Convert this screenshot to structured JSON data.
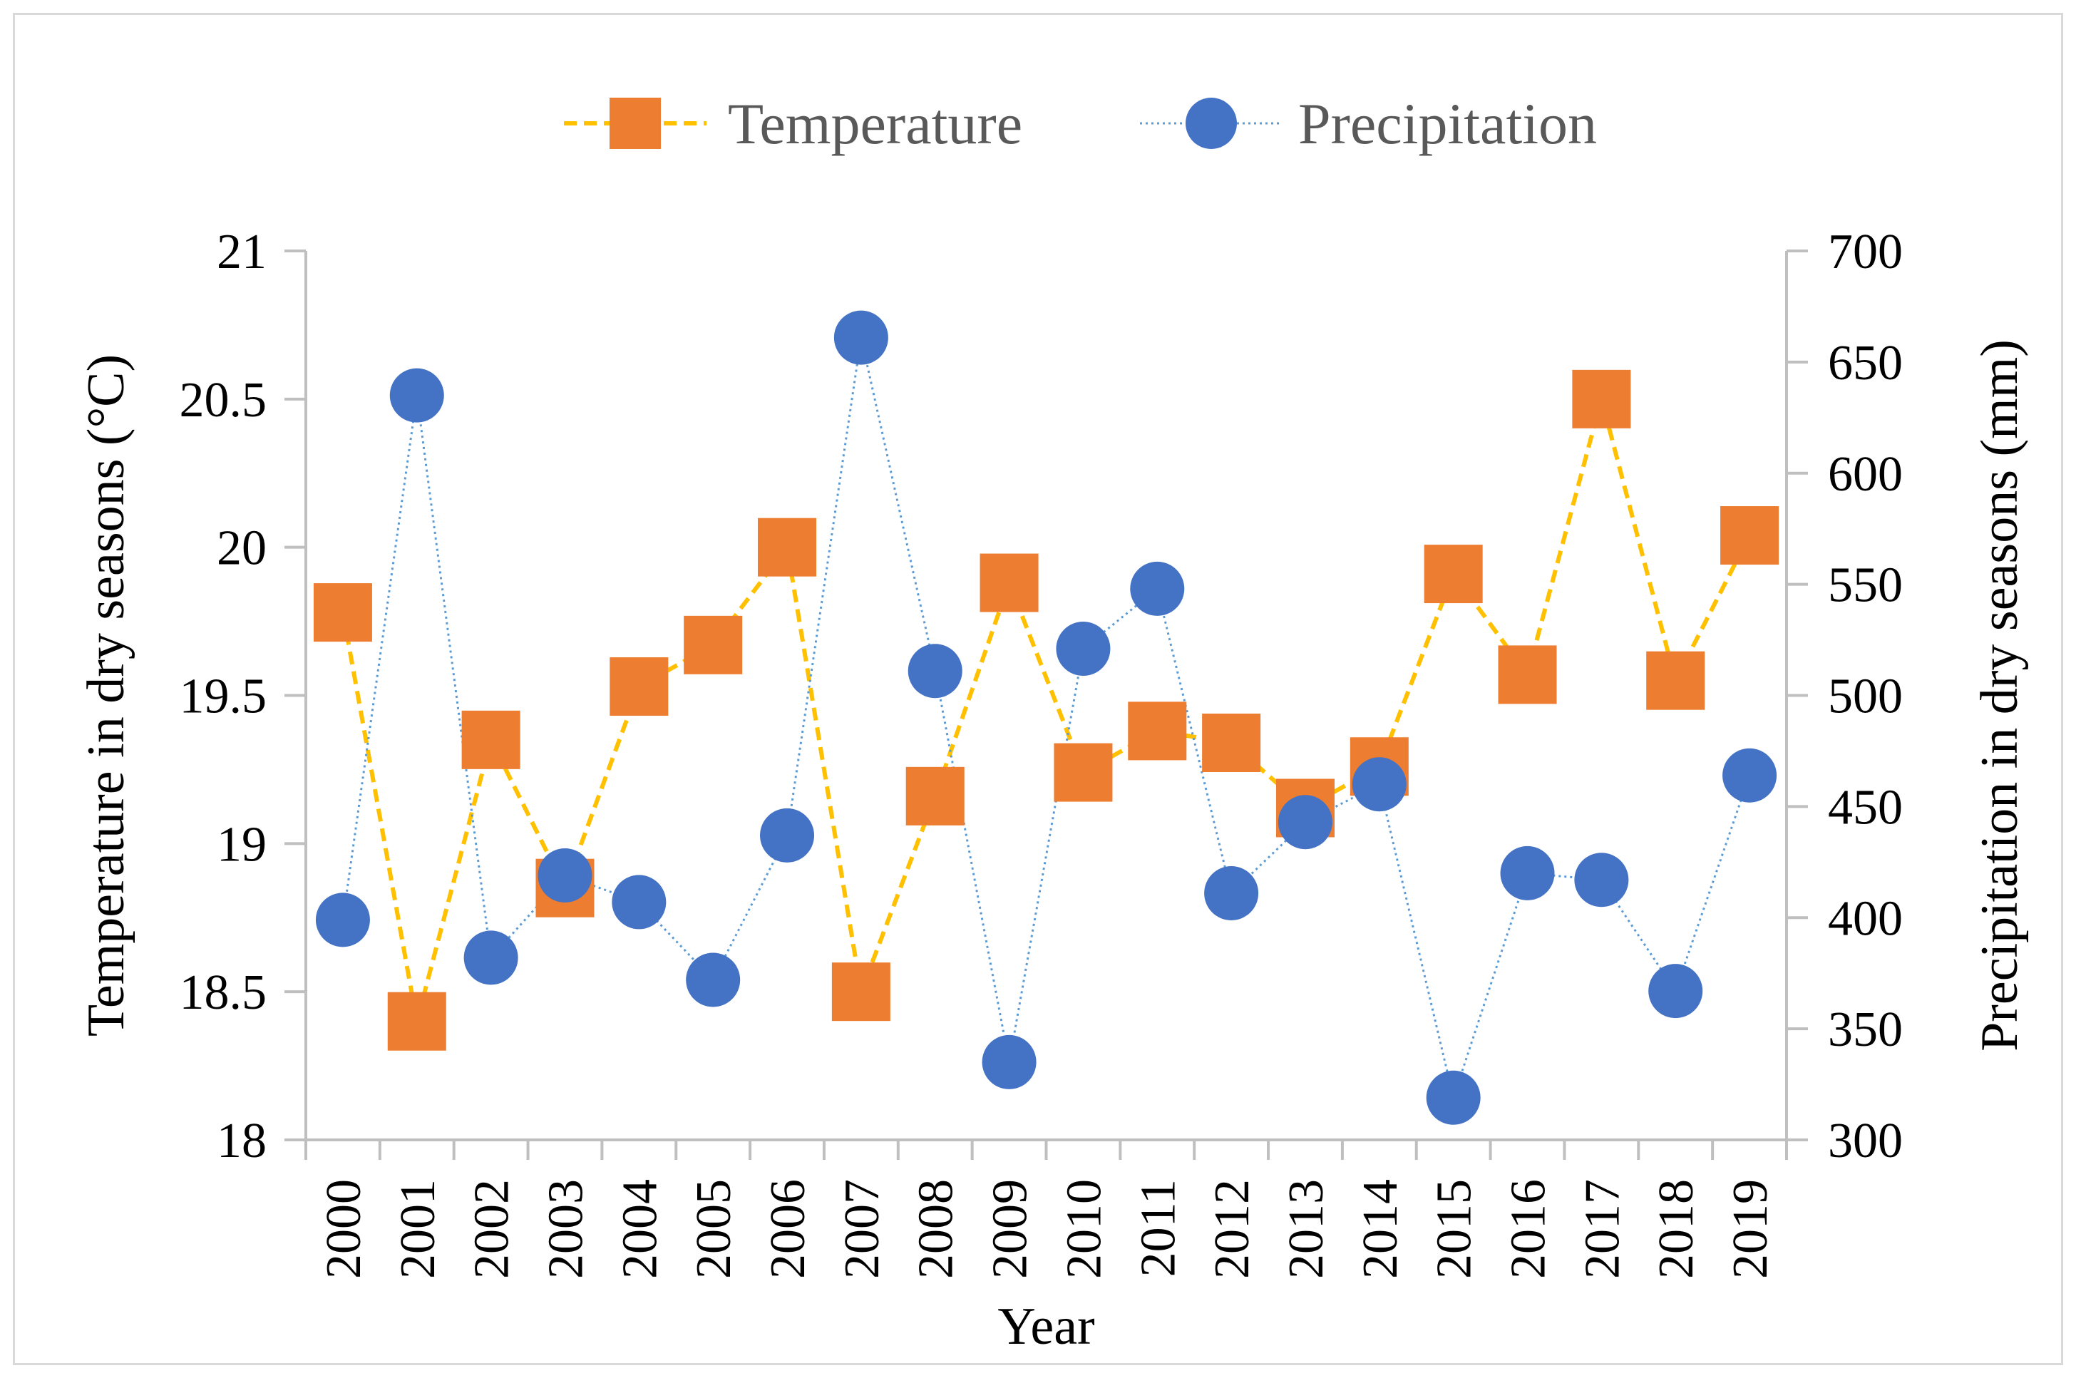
{
  "chart_data": {
    "type": "line",
    "title": "",
    "categories": [
      "2000",
      "2001",
      "2002",
      "2003",
      "2004",
      "2005",
      "2006",
      "2007",
      "2008",
      "2009",
      "2010",
      "2011",
      "2012",
      "2013",
      "2014",
      "2015",
      "2016",
      "2017",
      "2018",
      "2019"
    ],
    "xlabel": "Year",
    "series": [
      {
        "name": "Temperature",
        "axis": "left",
        "color": "#ED7D31",
        "line_color": "#FFC000",
        "marker": "square",
        "line_style": "dashed",
        "values": [
          19.78,
          18.4,
          19.35,
          18.85,
          19.53,
          19.67,
          20.0,
          18.5,
          19.16,
          19.88,
          19.24,
          19.38,
          19.34,
          19.12,
          19.26,
          19.91,
          19.57,
          20.5,
          19.55,
          20.04
        ]
      },
      {
        "name": "Precipitation",
        "axis": "right",
        "color": "#4472C4",
        "line_color": "#5B9BD5",
        "marker": "circle",
        "line_style": "dotted",
        "values": [
          399,
          635,
          382,
          419,
          407,
          372,
          437,
          661,
          511,
          335,
          521,
          548,
          411,
          443,
          460,
          319,
          420,
          417,
          367,
          464
        ]
      }
    ],
    "y_left": {
      "label": "Temperature in dry seasons (°C)",
      "min": 18,
      "max": 21,
      "ticks": [
        "18",
        "18.5",
        "19",
        "19.5",
        "20",
        "20.5",
        "21"
      ]
    },
    "y_right": {
      "label": "Precipitation in dry seasons (mm)",
      "min": 300,
      "max": 700,
      "ticks": [
        "300",
        "350",
        "400",
        "450",
        "500",
        "550",
        "600",
        "650",
        "700"
      ]
    },
    "legend_position": "top-center",
    "grid": false
  },
  "colors": {
    "axis": "#BFBFBF",
    "frame": "#D9D9D9"
  }
}
